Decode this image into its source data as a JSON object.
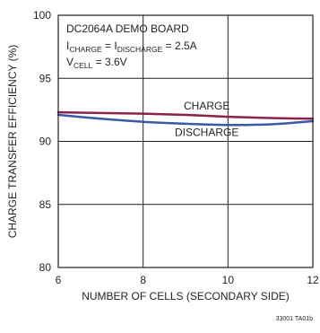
{
  "chart_data": {
    "type": "line",
    "xlabel": "NUMBER OF CELLS (SECONDARY SIDE)",
    "ylabel": "CHARGE TRANSFER EFFICIENCY (%)",
    "xlim": [
      6,
      12
    ],
    "ylim": [
      80,
      100
    ],
    "x_ticks": [
      6,
      8,
      10,
      12
    ],
    "y_ticks": [
      80,
      85,
      90,
      95,
      100
    ],
    "grid": true,
    "annotation": {
      "line1": "DC2064A DEMO BOARD",
      "line2_parts": [
        {
          "text": "I",
          "sub": false
        },
        {
          "text": "CHARGE",
          "sub": true
        },
        {
          "text": " = I",
          "sub": false
        },
        {
          "text": "DISCHARGE",
          "sub": true
        },
        {
          "text": " = 2.5A",
          "sub": false
        }
      ],
      "line3_parts": [
        {
          "text": "V",
          "sub": false
        },
        {
          "text": "CELL",
          "sub": true
        },
        {
          "text": " = 3.6V",
          "sub": false
        }
      ]
    },
    "series": [
      {
        "name": "CHARGE",
        "color": "#8b2346",
        "x": [
          6,
          7,
          8,
          9,
          10,
          11,
          12
        ],
        "y": [
          92.3,
          92.25,
          92.2,
          92.1,
          91.95,
          91.85,
          91.8
        ]
      },
      {
        "name": "DISCHARGE",
        "color": "#3a5aa8",
        "x": [
          6,
          7,
          8,
          9,
          10,
          11,
          12
        ],
        "y": [
          92.1,
          91.8,
          91.55,
          91.4,
          91.3,
          91.35,
          91.6
        ]
      }
    ],
    "footnote": "33001 TA01b"
  }
}
